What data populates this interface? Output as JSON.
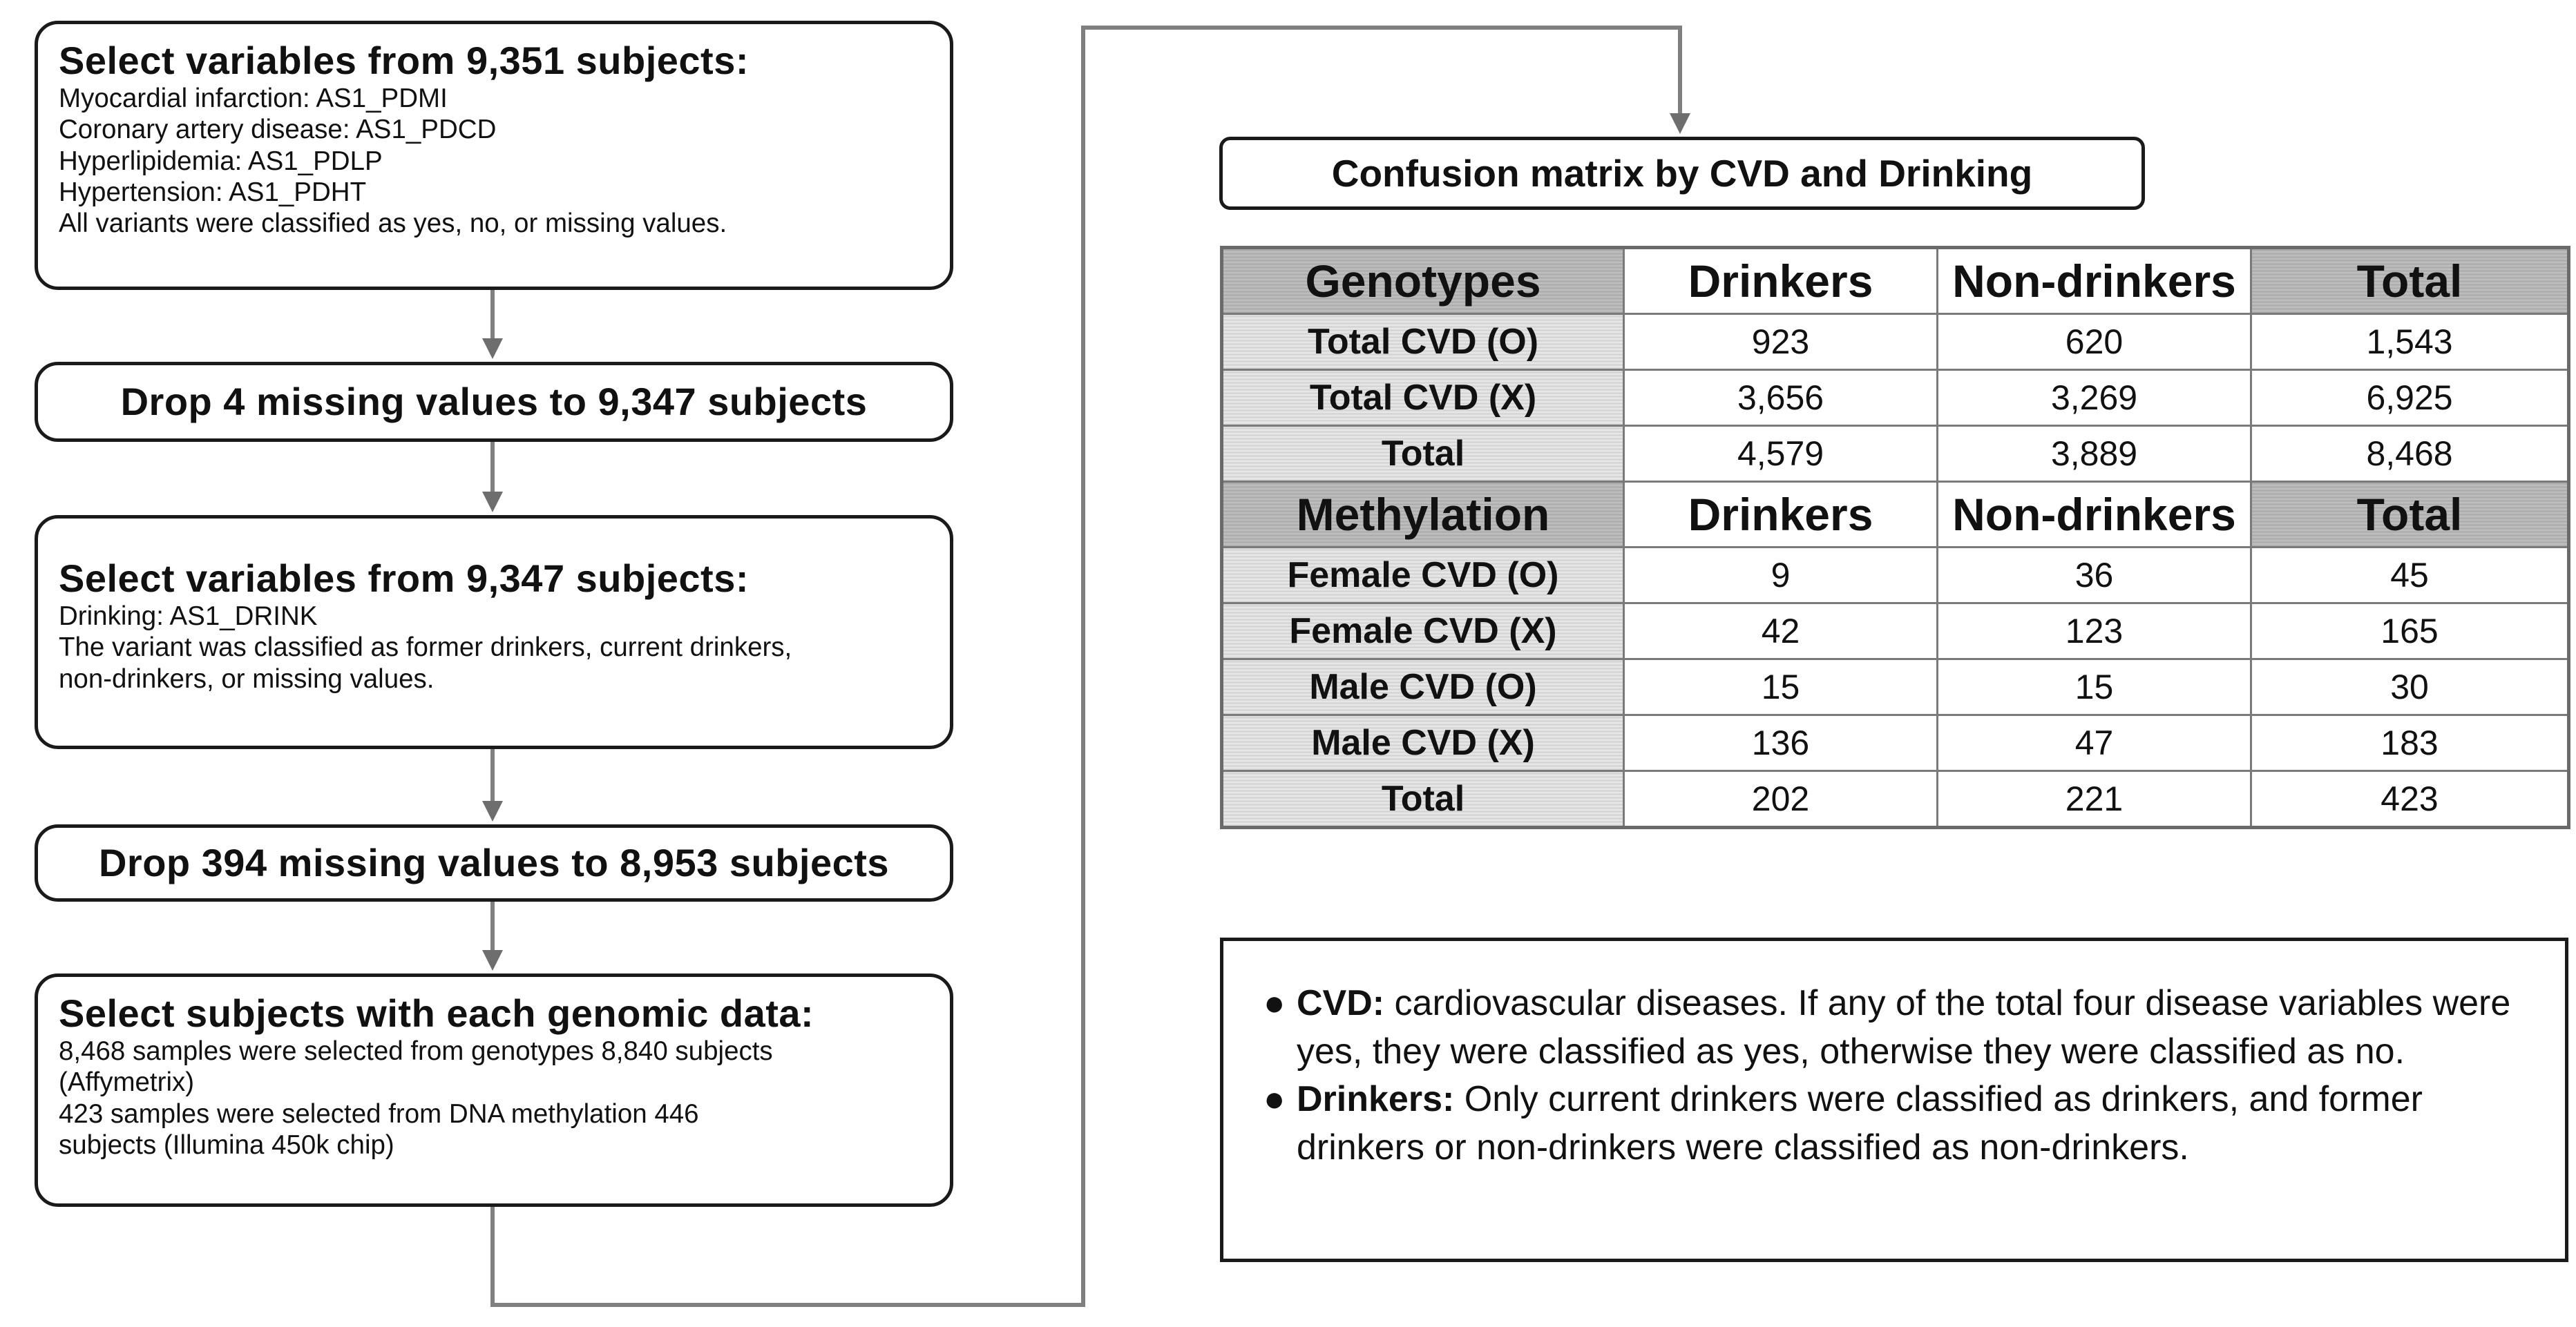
{
  "flow": {
    "step1": {
      "title": "Select variables  from 9,351 subjects:",
      "lines": [
        "Myocardial infarction: AS1_PDMI",
        "Coronary artery disease: AS1_PDCD",
        "Hyperlipidemia: AS1_PDLP",
        "Hypertension: AS1_PDHT",
        "All variants were classified as yes, no, or  missing values."
      ]
    },
    "step2": {
      "title": "Drop 4 missing  values to 9,347 subjects"
    },
    "step3": {
      "title": "Select variables  from 9,347 subjects:",
      "lines": [
        "Drinking: AS1_DRINK",
        "The variant was classified as former drinkers, current drinkers,",
        "non-drinkers, or missing values."
      ]
    },
    "step4": {
      "title": "Drop 394 missing  values to 8,953 subjects"
    },
    "step5": {
      "title": "Select subjects with each genomic data:",
      "lines": [
        "8,468 samples were selected from genotypes 8,840 subjects",
        "(Affymetrix)",
        "423 samples were selected from DNA methylation 446",
        "subjects (Illumina 450k chip)"
      ]
    }
  },
  "matrix": {
    "title": "Confusion matrix by CVD and Drinking",
    "genotypes": {
      "header": [
        "Genotypes",
        "Drinkers",
        "Non-drinkers",
        "Total"
      ],
      "rows": [
        [
          "Total  CVD (O)",
          "923",
          "620",
          "1,543"
        ],
        [
          "Total  CVD (X)",
          "3,656",
          "3,269",
          "6,925"
        ],
        [
          "Total",
          "4,579",
          "3,889",
          "8,468"
        ]
      ]
    },
    "methylation": {
      "header": [
        "Methylation",
        "Drinkers",
        "Non-drinkers",
        "Total"
      ],
      "rows": [
        [
          "Female  CVD (O)",
          "9",
          "36",
          "45"
        ],
        [
          "Female  CVD (X)",
          "42",
          "123",
          "165"
        ],
        [
          "Male  CVD (O)",
          "15",
          "15",
          "30"
        ],
        [
          "Male  CVD (X)",
          "136",
          "47",
          "183"
        ],
        [
          "Total",
          "202",
          "221",
          "423"
        ]
      ]
    }
  },
  "notes": [
    {
      "bullet": "●",
      "term": "CVD:",
      "text": " cardiovascular  diseases.  If any of the  total  four  disease variables  were yes, they were classified as yes, otherwise they were classified as no."
    },
    {
      "bullet": "●",
      "term": "Drinkers:",
      "text": " Only current drinkers were classified as drinkers, and former drinkers or non-drinkers were classified as non-drinkers."
    }
  ],
  "colors": {
    "stroke": "#1a1a1a",
    "connector": "#808080",
    "header_fill": "#bdbdbd",
    "label_fill": "#e6e6e6"
  }
}
